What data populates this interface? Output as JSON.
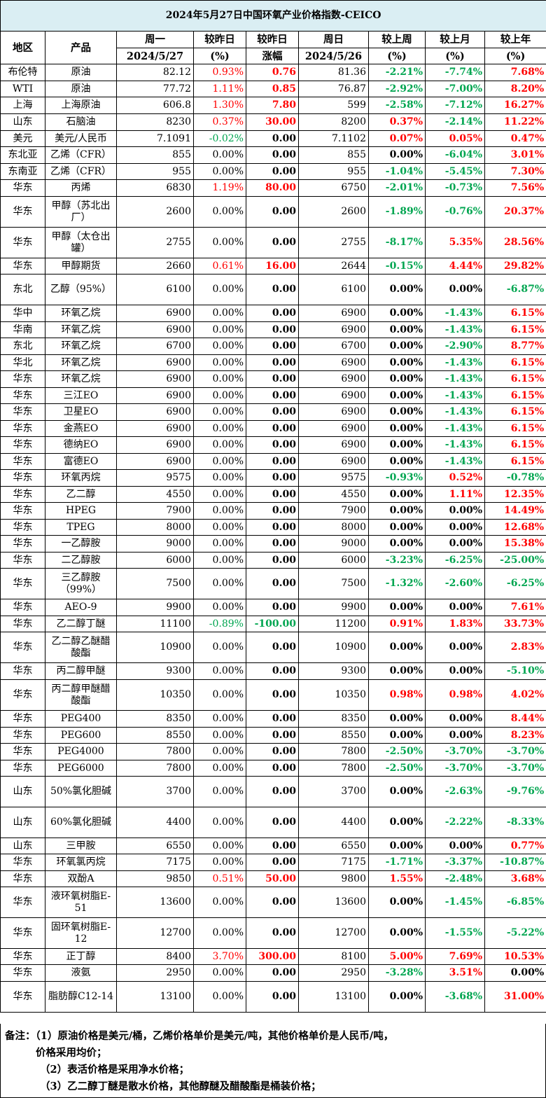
{
  "title": "2024年5月27日中国环氧产业价格指数-CEICO",
  "headers": {
    "region": "地区",
    "product": "产品",
    "mon": "周一",
    "mon_date": "2024/5/27",
    "dod_pct": "较昨日",
    "dod_pct_unit": "(%)",
    "dod_amt": "较昨日",
    "dod_amt_unit": "涨幅",
    "sun": "周日",
    "sun_date": "2024/5/26",
    "wow": "较上周",
    "wow_unit": "(%)",
    "mom": "较上月",
    "mom_unit": "(%)",
    "yoy": "较上年",
    "yoy_unit": "(%)"
  },
  "colors": {
    "up": "#ff0000",
    "down": "#00a550",
    "title_bg": "#daeef3"
  },
  "rows": [
    {
      "region": "布伦特",
      "product": "原油",
      "mon": "82.12",
      "d1": "0.93%",
      "d2": "0.76",
      "sun": "81.36",
      "w": "-2.21%",
      "m": "-7.74%",
      "y": "7.68%"
    },
    {
      "region": "WTI",
      "product": "原油",
      "mon": "77.72",
      "d1": "1.11%",
      "d2": "0.85",
      "sun": "76.87",
      "w": "-2.92%",
      "m": "-7.00%",
      "y": "8.20%"
    },
    {
      "region": "上海",
      "product": "上海原油",
      "mon": "606.8",
      "d1": "1.30%",
      "d2": "7.80",
      "sun": "599",
      "w": "-2.58%",
      "m": "-7.12%",
      "y": "16.27%"
    },
    {
      "region": "山东",
      "product": "石脑油",
      "mon": "8230",
      "d1": "0.37%",
      "d2": "30.00",
      "sun": "8200",
      "w": "0.37%",
      "m": "-2.14%",
      "y": "11.22%"
    },
    {
      "region": "美元",
      "product": "美元/人民币",
      "mon": "7.1091",
      "d1": "-0.02%",
      "d2": "0.00",
      "sun": "7.1102",
      "w": "0.07%",
      "m": "0.05%",
      "y": "0.47%"
    },
    {
      "region": "东北亚",
      "product": "乙烯（CFR）",
      "mon": "855",
      "d1": "0.00%",
      "d2": "0.00",
      "sun": "855",
      "w": "0.00%",
      "m": "-6.04%",
      "y": "3.01%"
    },
    {
      "region": "东南亚",
      "product": "乙烯（CFR）",
      "mon": "955",
      "d1": "0.00%",
      "d2": "0.00",
      "sun": "955",
      "w": "-1.04%",
      "m": "-5.45%",
      "y": "7.30%"
    },
    {
      "region": "华东",
      "product": "丙烯",
      "mon": "6830",
      "d1": "1.19%",
      "d2": "80.00",
      "sun": "6750",
      "w": "-2.01%",
      "m": "-0.73%",
      "y": "7.56%"
    },
    {
      "region": "华东",
      "product": "甲醇（苏北出厂）",
      "mon": "2600",
      "d1": "0.00%",
      "d2": "0.00",
      "sun": "2600",
      "w": "-1.89%",
      "m": "-0.76%",
      "y": "20.37%"
    },
    {
      "region": "华东",
      "product": "甲醇（太仓出罐）",
      "mon": "2755",
      "d1": "0.00%",
      "d2": "0.00",
      "sun": "2755",
      "w": "-8.17%",
      "m": "5.35%",
      "y": "28.56%"
    },
    {
      "region": "华东",
      "product": "甲醇期货",
      "mon": "2660",
      "d1": "0.61%",
      "d2": "16.00",
      "sun": "2644",
      "w": "-0.15%",
      "m": "4.44%",
      "y": "29.82%"
    },
    {
      "region": "东北",
      "product": "乙醇（95%）",
      "mon": "6100",
      "d1": "0.00%",
      "d2": "0.00",
      "sun": "6100",
      "w": "0.00%",
      "m": "0.00%",
      "y": "-6.87%"
    },
    {
      "region": "华中",
      "product": "环氧乙烷",
      "mon": "6900",
      "d1": "0.00%",
      "d2": "0.00",
      "sun": "6900",
      "w": "0.00%",
      "m": "-1.43%",
      "y": "6.15%"
    },
    {
      "region": "华南",
      "product": "环氧乙烷",
      "mon": "6900",
      "d1": "0.00%",
      "d2": "0.00",
      "sun": "6900",
      "w": "0.00%",
      "m": "-1.43%",
      "y": "6.15%"
    },
    {
      "region": "东北",
      "product": "环氧乙烷",
      "mon": "6700",
      "d1": "0.00%",
      "d2": "0.00",
      "sun": "6700",
      "w": "0.00%",
      "m": "-2.90%",
      "y": "8.77%"
    },
    {
      "region": "华北",
      "product": "环氧乙烷",
      "mon": "6900",
      "d1": "0.00%",
      "d2": "0.00",
      "sun": "6900",
      "w": "0.00%",
      "m": "-1.43%",
      "y": "6.15%"
    },
    {
      "region": "华东",
      "product": "环氧乙烷",
      "mon": "6900",
      "d1": "0.00%",
      "d2": "0.00",
      "sun": "6900",
      "w": "0.00%",
      "m": "-1.43%",
      "y": "6.15%"
    },
    {
      "region": "华东",
      "product": "三江EO",
      "mon": "6900",
      "d1": "0.00%",
      "d2": "0.00",
      "sun": "6900",
      "w": "0.00%",
      "m": "-1.43%",
      "y": "6.15%"
    },
    {
      "region": "华东",
      "product": "卫星EO",
      "mon": "6900",
      "d1": "0.00%",
      "d2": "0.00",
      "sun": "6900",
      "w": "0.00%",
      "m": "-1.43%",
      "y": "6.15%"
    },
    {
      "region": "华东",
      "product": "金燕EO",
      "mon": "6900",
      "d1": "0.00%",
      "d2": "0.00",
      "sun": "6900",
      "w": "0.00%",
      "m": "-1.43%",
      "y": "6.15%"
    },
    {
      "region": "华东",
      "product": "德纳EO",
      "mon": "6900",
      "d1": "0.00%",
      "d2": "0.00",
      "sun": "6900",
      "w": "0.00%",
      "m": "-1.43%",
      "y": "6.15%"
    },
    {
      "region": "华东",
      "product": "富德EO",
      "mon": "6900",
      "d1": "0.00%",
      "d2": "0.00",
      "sun": "6900",
      "w": "0.00%",
      "m": "-1.43%",
      "y": "6.15%"
    },
    {
      "region": "华东",
      "product": "环氧丙烷",
      "mon": "9575",
      "d1": "0.00%",
      "d2": "0.00",
      "sun": "9575",
      "w": "-0.93%",
      "m": "0.52%",
      "y": "-0.78%"
    },
    {
      "region": "华东",
      "product": "乙二醇",
      "mon": "4550",
      "d1": "0.00%",
      "d2": "0.00",
      "sun": "4550",
      "w": "0.00%",
      "m": "1.11%",
      "y": "12.35%"
    },
    {
      "region": "华东",
      "product": "HPEG",
      "mon": "7900",
      "d1": "0.00%",
      "d2": "0.00",
      "sun": "7900",
      "w": "0.00%",
      "m": "0.00%",
      "y": "14.49%"
    },
    {
      "region": "华东",
      "product": "TPEG",
      "mon": "8000",
      "d1": "0.00%",
      "d2": "0.00",
      "sun": "8000",
      "w": "0.00%",
      "m": "0.00%",
      "y": "12.68%"
    },
    {
      "region": "华东",
      "product": "一乙醇胺",
      "mon": "9000",
      "d1": "0.00%",
      "d2": "0.00",
      "sun": "9000",
      "w": "0.00%",
      "m": "0.00%",
      "y": "15.38%"
    },
    {
      "region": "华东",
      "product": "二乙醇胺",
      "mon": "6000",
      "d1": "0.00%",
      "d2": "0.00",
      "sun": "6000",
      "w": "-3.23%",
      "m": "-6.25%",
      "y": "-25.00%"
    },
    {
      "region": "华东",
      "product": "三乙醇胺（99%）",
      "mon": "7500",
      "d1": "0.00%",
      "d2": "0.00",
      "sun": "7500",
      "w": "-1.32%",
      "m": "-2.60%",
      "y": "-6.25%"
    },
    {
      "region": "华东",
      "product": "AEO-9",
      "mon": "9900",
      "d1": "0.00%",
      "d2": "0.00",
      "sun": "9900",
      "w": "0.00%",
      "m": "0.00%",
      "y": "7.61%"
    },
    {
      "region": "华东",
      "product": "乙二醇丁醚",
      "mon": "11100",
      "d1": "-0.89%",
      "d2": "-100.00",
      "sun": "11200",
      "w": "0.91%",
      "m": "1.83%",
      "y": "33.73%"
    },
    {
      "region": "华东",
      "product": "乙二醇乙醚醋酸酯",
      "mon": "10900",
      "d1": "0.00%",
      "d2": "0.00",
      "sun": "10900",
      "w": "0.00%",
      "m": "0.00%",
      "y": "2.83%"
    },
    {
      "region": "华东",
      "product": "丙二醇甲醚",
      "mon": "9300",
      "d1": "0.00%",
      "d2": "0.00",
      "sun": "9300",
      "w": "0.00%",
      "m": "0.00%",
      "y": "-5.10%"
    },
    {
      "region": "华东",
      "product": "丙二醇甲醚醋酸酯",
      "mon": "10350",
      "d1": "0.00%",
      "d2": "0.00",
      "sun": "10350",
      "w": "0.98%",
      "m": "0.98%",
      "y": "4.02%"
    },
    {
      "region": "华东",
      "product": "PEG400",
      "mon": "8350",
      "d1": "0.00%",
      "d2": "0.00",
      "sun": "8350",
      "w": "0.00%",
      "m": "0.00%",
      "y": "8.44%"
    },
    {
      "region": "华东",
      "product": "PEG600",
      "mon": "8550",
      "d1": "0.00%",
      "d2": "0.00",
      "sun": "8550",
      "w": "0.00%",
      "m": "0.00%",
      "y": "8.23%"
    },
    {
      "region": "华东",
      "product": "PEG4000",
      "mon": "7800",
      "d1": "0.00%",
      "d2": "0.00",
      "sun": "7800",
      "w": "-2.50%",
      "m": "-3.70%",
      "y": "-3.70%"
    },
    {
      "region": "华东",
      "product": "PEG6000",
      "mon": "7800",
      "d1": "0.00%",
      "d2": "0.00",
      "sun": "7800",
      "w": "-2.50%",
      "m": "-3.70%",
      "y": "-3.70%"
    },
    {
      "region": "山东",
      "product": "50%氯化胆碱",
      "mon": "3700",
      "d1": "0.00%",
      "d2": "0.00",
      "sun": "3700",
      "w": "0.00%",
      "m": "-2.63%",
      "y": "-9.76%"
    },
    {
      "region": "山东",
      "product": "60%氯化胆碱",
      "mon": "4400",
      "d1": "0.00%",
      "d2": "0.00",
      "sun": "4400",
      "w": "0.00%",
      "m": "-2.22%",
      "y": "-8.33%"
    },
    {
      "region": "山东",
      "product": "三甲胺",
      "mon": "6550",
      "d1": "0.00%",
      "d2": "0.00",
      "sun": "6550",
      "w": "0.00%",
      "m": "0.00%",
      "y": "0.77%"
    },
    {
      "region": "华东",
      "product": "环氧氯丙烷",
      "mon": "7175",
      "d1": "0.00%",
      "d2": "0.00",
      "sun": "7175",
      "w": "-1.71%",
      "m": "-3.37%",
      "y": "-10.87%"
    },
    {
      "region": "华东",
      "product": "双酚A",
      "mon": "9850",
      "d1": "0.51%",
      "d2": "50.00",
      "sun": "9800",
      "w": "1.55%",
      "m": "-2.48%",
      "y": "3.68%"
    },
    {
      "region": "华东",
      "product": "液环氧树脂E-51",
      "mon": "13600",
      "d1": "0.00%",
      "d2": "0.00",
      "sun": "13600",
      "w": "0.00%",
      "m": "-1.45%",
      "y": "-6.85%"
    },
    {
      "region": "华东",
      "product": "固环氧树脂E-12",
      "mon": "12700",
      "d1": "0.00%",
      "d2": "0.00",
      "sun": "12700",
      "w": "0.00%",
      "m": "-1.55%",
      "y": "-5.22%"
    },
    {
      "region": "华东",
      "product": "正丁醇",
      "mon": "8400",
      "d1": "3.70%",
      "d2": "300.00",
      "sun": "8100",
      "w": "5.00%",
      "m": "7.69%",
      "y": "10.53%"
    },
    {
      "region": "华东",
      "product": "液氨",
      "mon": "2950",
      "d1": "0.00%",
      "d2": "0.00",
      "sun": "2950",
      "w": "-3.28%",
      "m": "3.51%",
      "y": "0.00%"
    },
    {
      "region": "华东",
      "product": "脂肪醇C12-14",
      "mon": "13100",
      "d1": "0.00%",
      "d2": "0.00",
      "sun": "13100",
      "w": "0.00%",
      "m": "-3.68%",
      "y": "31.00%"
    }
  ],
  "notes": [
    "备注：（1）原油价格是美元/桶，乙烯价格单价是美元/吨，其他价格单价是人民币/吨，",
    "价格采用均价；",
    "（2）表活价格是采用净水价格；",
    "（3）乙二醇丁醚是散水价格，其他醇醚及醋酸酯是桶装价格；"
  ]
}
